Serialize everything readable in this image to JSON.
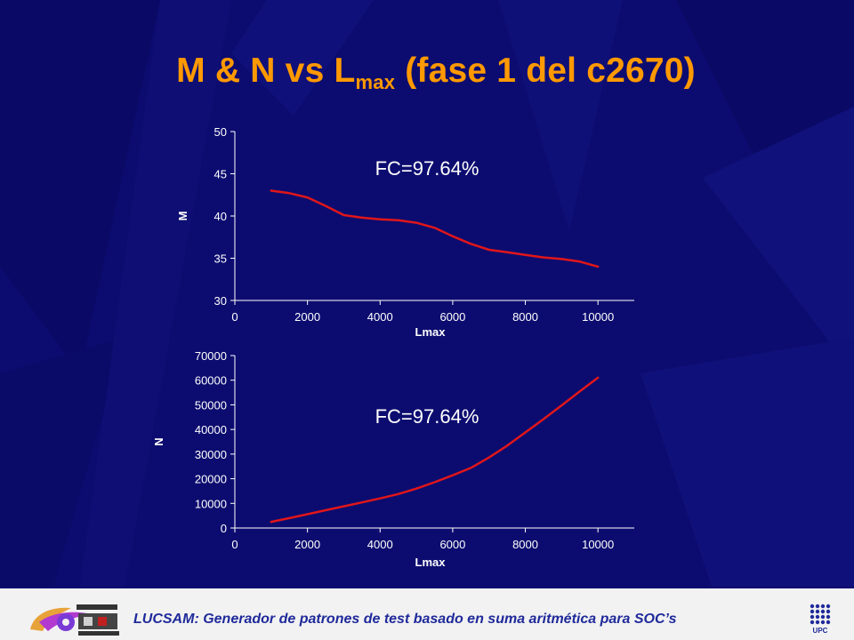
{
  "slide": {
    "title_main": "M & N vs L",
    "title_sub": "max",
    "title_rest": " (fase 1 del c2670)"
  },
  "footer": {
    "text": "LUCSAM: Generador de patrones de test basado en suma aritmética para SOC’s",
    "upc_label": "UPC"
  },
  "colors": {
    "background": "#0c0c70",
    "title": "#ff9900",
    "curve": "#e0161a",
    "axis_text": "#ffffff",
    "annotation": "#ffffff",
    "footer_text": "#1f2a9a"
  },
  "chart_data": [
    {
      "type": "line",
      "xlabel": "Lmax",
      "ylabel": "M",
      "annotation": "FC=97.64%",
      "xlim": [
        0,
        11000
      ],
      "ylim": [
        30,
        50
      ],
      "xticks": [
        0,
        2000,
        4000,
        6000,
        8000,
        10000
      ],
      "yticks": [
        30,
        35,
        40,
        45,
        50
      ],
      "grid": false,
      "series": [
        {
          "x": [
            1000,
            1500,
            2000,
            2500,
            3000,
            3500,
            4000,
            4500,
            5000,
            5500,
            6000,
            6500,
            7000,
            7500,
            8000,
            8500,
            9000,
            9500,
            10000
          ],
          "y": [
            43.0,
            42.7,
            42.2,
            41.2,
            40.1,
            39.8,
            39.6,
            39.5,
            39.2,
            38.6,
            37.6,
            36.7,
            36.0,
            35.7,
            35.4,
            35.1,
            34.9,
            34.6,
            34.0
          ]
        }
      ]
    },
    {
      "type": "line",
      "xlabel": "Lmax",
      "ylabel": "N",
      "annotation": "FC=97.64%",
      "xlim": [
        0,
        11000
      ],
      "ylim": [
        0,
        70000
      ],
      "xticks": [
        0,
        2000,
        4000,
        6000,
        8000,
        10000
      ],
      "yticks": [
        0,
        10000,
        20000,
        30000,
        40000,
        50000,
        60000,
        70000
      ],
      "grid": false,
      "series": [
        {
          "x": [
            1000,
            1500,
            2000,
            2500,
            3000,
            3500,
            4000,
            4500,
            5000,
            5500,
            6000,
            6500,
            7000,
            7500,
            8000,
            8500,
            9000,
            9500,
            10000
          ],
          "y": [
            2500,
            4000,
            5600,
            7200,
            8800,
            10400,
            12000,
            13800,
            16000,
            18600,
            21400,
            24400,
            28600,
            33400,
            38800,
            44200,
            49800,
            55500,
            61000
          ]
        }
      ]
    }
  ]
}
